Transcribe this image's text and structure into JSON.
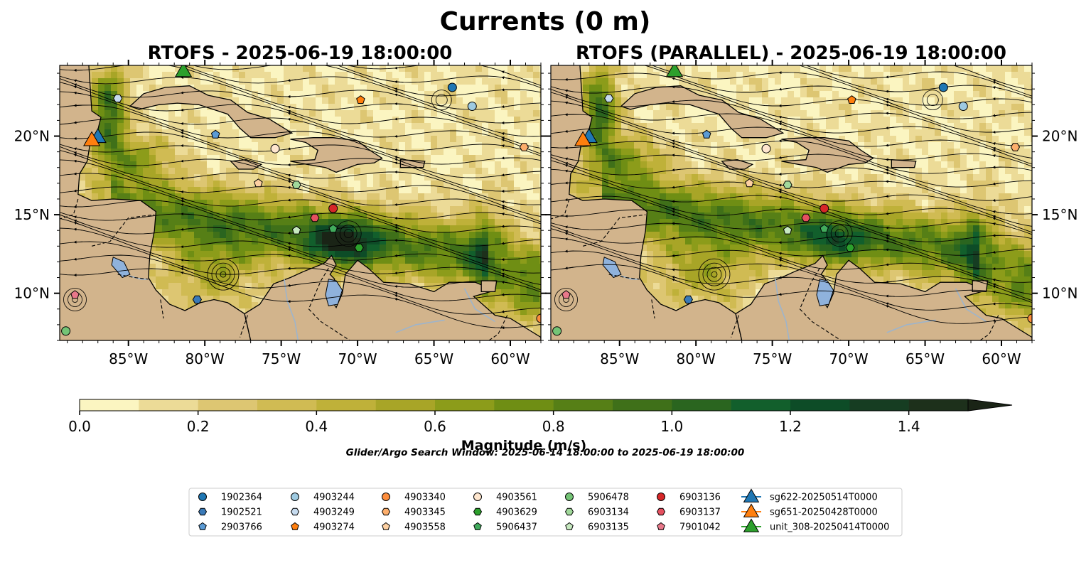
{
  "figure": {
    "title": "Currents (0 m)",
    "window_text": "Glider/Argo Search Window: 2025-06-14 18:00:00 to 2025-06-19 18:00:00"
  },
  "panels": [
    {
      "title": "RTOFS - 2025-06-19 18:00:00"
    },
    {
      "title": "RTOFS (PARALLEL) - 2025-06-19 18:00:00"
    }
  ],
  "map": {
    "lon_range": [
      -89.5,
      -58.0
    ],
    "lat_range": [
      7.0,
      24.5
    ],
    "lon_ticks": [
      {
        "value": -85,
        "label": "85°W"
      },
      {
        "value": -80,
        "label": "80°W"
      },
      {
        "value": -75,
        "label": "75°W"
      },
      {
        "value": -70,
        "label": "70°W"
      },
      {
        "value": -65,
        "label": "65°W"
      },
      {
        "value": -60,
        "label": "60°W"
      }
    ],
    "lat_ticks": [
      {
        "value": 10,
        "label": "10°N"
      },
      {
        "value": 15,
        "label": "15°N"
      },
      {
        "value": 20,
        "label": "20°N"
      }
    ],
    "land_color": "#d2b48c",
    "lake_color": "#8fb2dc",
    "coast_color": "#000000"
  },
  "colorbar": {
    "label": "Magnitude (m/s)",
    "min": 0.0,
    "max": 1.5,
    "step": 0.1,
    "extend": "max",
    "ticks": [
      {
        "value": 0.0,
        "label": "0.0"
      },
      {
        "value": 0.2,
        "label": "0.2"
      },
      {
        "value": 0.4,
        "label": "0.4"
      },
      {
        "value": 0.6,
        "label": "0.6"
      },
      {
        "value": 0.8,
        "label": "0.8"
      },
      {
        "value": 1.0,
        "label": "1.0"
      },
      {
        "value": 1.2,
        "label": "1.2"
      },
      {
        "value": 1.4,
        "label": "1.4"
      }
    ],
    "colors": [
      "#fbf5c1",
      "#ecdb97",
      "#ddc672",
      "#d0bb53",
      "#bfb139",
      "#a8a527",
      "#8c9c1a",
      "#6f8e14",
      "#567f16",
      "#3f7019",
      "#2a651f",
      "#125f2c",
      "#0d4c27",
      "#163d22",
      "#1d301b"
    ],
    "extend_color": "#1a2416"
  },
  "legend": {
    "columns": [
      [
        {
          "id": "1902364",
          "shape": "circle",
          "color": "#1f77b4"
        },
        {
          "id": "1902521",
          "shape": "hexagon",
          "color": "#3a7ab8"
        },
        {
          "id": "2903766",
          "shape": "pentagon",
          "color": "#5b9bd5"
        }
      ],
      [
        {
          "id": "4903244",
          "shape": "circle",
          "color": "#9ecae1"
        },
        {
          "id": "4903249",
          "shape": "hexagon",
          "color": "#c6dbef"
        },
        {
          "id": "4903274",
          "shape": "pentagon",
          "color": "#ff7f0e"
        }
      ],
      [
        {
          "id": "4903340",
          "shape": "circle",
          "color": "#fd8d3c"
        },
        {
          "id": "4903345",
          "shape": "hexagon",
          "color": "#fdae6b"
        },
        {
          "id": "4903558",
          "shape": "pentagon",
          "color": "#fdd0a2"
        }
      ],
      [
        {
          "id": "4903561",
          "shape": "circle",
          "color": "#fee6ce"
        },
        {
          "id": "4903629",
          "shape": "hexagon",
          "color": "#2ca02c"
        },
        {
          "id": "5906437",
          "shape": "pentagon",
          "color": "#41ab5d"
        }
      ],
      [
        {
          "id": "5906478",
          "shape": "circle",
          "color": "#74c476"
        },
        {
          "id": "6903134",
          "shape": "hexagon",
          "color": "#a1d99b"
        },
        {
          "id": "6903135",
          "shape": "pentagon",
          "color": "#c7e9c0"
        }
      ],
      [
        {
          "id": "6903136",
          "shape": "circle",
          "color": "#d62728"
        },
        {
          "id": "6903137",
          "shape": "hexagon",
          "color": "#e5505f"
        },
        {
          "id": "7901042",
          "shape": "pentagon",
          "color": "#e8788a"
        }
      ],
      [
        {
          "id": "sg622-20250514T0000",
          "shape": "triangle",
          "color": "#1f77b4"
        },
        {
          "id": "sg651-20250428T0000",
          "shape": "triangle",
          "color": "#ff7f0e"
        },
        {
          "id": "unit_308-20250414T0000",
          "shape": "triangle",
          "color": "#2ca02c"
        }
      ]
    ]
  },
  "markers": [
    {
      "id": "1902364",
      "shape": "circle",
      "color": "#1f77b4",
      "lon": -63.8,
      "lat": 23.1
    },
    {
      "id": "4903244",
      "shape": "circle",
      "color": "#9ecae1",
      "lon": -62.5,
      "lat": 21.9
    },
    {
      "id": "4903274",
      "shape": "pentagon",
      "color": "#ff7f0e",
      "lon": -69.8,
      "lat": 22.3
    },
    {
      "id": "2903766",
      "shape": "pentagon",
      "color": "#5b9bd5",
      "lon": -79.3,
      "lat": 20.1
    },
    {
      "id": "4903249",
      "shape": "hexagon",
      "color": "#c6dbef",
      "lon": -85.7,
      "lat": 22.4
    },
    {
      "id": "4903561",
      "shape": "circle",
      "color": "#fee6ce",
      "lon": -75.4,
      "lat": 19.2
    },
    {
      "id": "4903345",
      "shape": "hexagon",
      "color": "#fdae6b",
      "lon": -59.1,
      "lat": 19.3
    },
    {
      "id": "4903558",
      "shape": "pentagon",
      "color": "#fdd0a2",
      "lon": -76.5,
      "lat": 17.0
    },
    {
      "id": "6903134",
      "shape": "hexagon",
      "color": "#a1d99b",
      "lon": -74.0,
      "lat": 16.9
    },
    {
      "id": "6903136",
      "shape": "circle",
      "color": "#d62728",
      "lon": -71.6,
      "lat": 15.4
    },
    {
      "id": "6903137",
      "shape": "hexagon",
      "color": "#e5505f",
      "lon": -72.8,
      "lat": 14.8
    },
    {
      "id": "5906437",
      "shape": "pentagon",
      "color": "#41ab5d",
      "lon": -71.6,
      "lat": 14.1
    },
    {
      "id": "6903135",
      "shape": "pentagon",
      "color": "#c7e9c0",
      "lon": -74.0,
      "lat": 14.0
    },
    {
      "id": "4903629",
      "shape": "hexagon",
      "color": "#2ca02c",
      "lon": -69.9,
      "lat": 12.9
    },
    {
      "id": "1902521",
      "shape": "hexagon",
      "color": "#3a7ab8",
      "lon": -80.5,
      "lat": 9.6
    },
    {
      "id": "7901042",
      "shape": "pentagon",
      "color": "#e8788a",
      "lon": -88.5,
      "lat": 9.9
    },
    {
      "id": "5906478",
      "shape": "circle",
      "color": "#74c476",
      "lon": -89.1,
      "lat": 7.6
    },
    {
      "id": "4903340",
      "shape": "circle",
      "color": "#fd8d3c",
      "lon": -58.0,
      "lat": 8.4
    },
    {
      "id": "sg622-20250514T0000",
      "shape": "triangle",
      "color": "#1f77b4",
      "lon": -87.0,
      "lat": 20.0
    },
    {
      "id": "sg651-20250428T0000",
      "shape": "triangle",
      "color": "#ff7f0e",
      "lon": -87.4,
      "lat": 19.8
    },
    {
      "id": "unit_308-20250414T0000",
      "shape": "triangle",
      "color": "#2ca02c",
      "lon": -81.4,
      "lat": 24.2
    }
  ]
}
